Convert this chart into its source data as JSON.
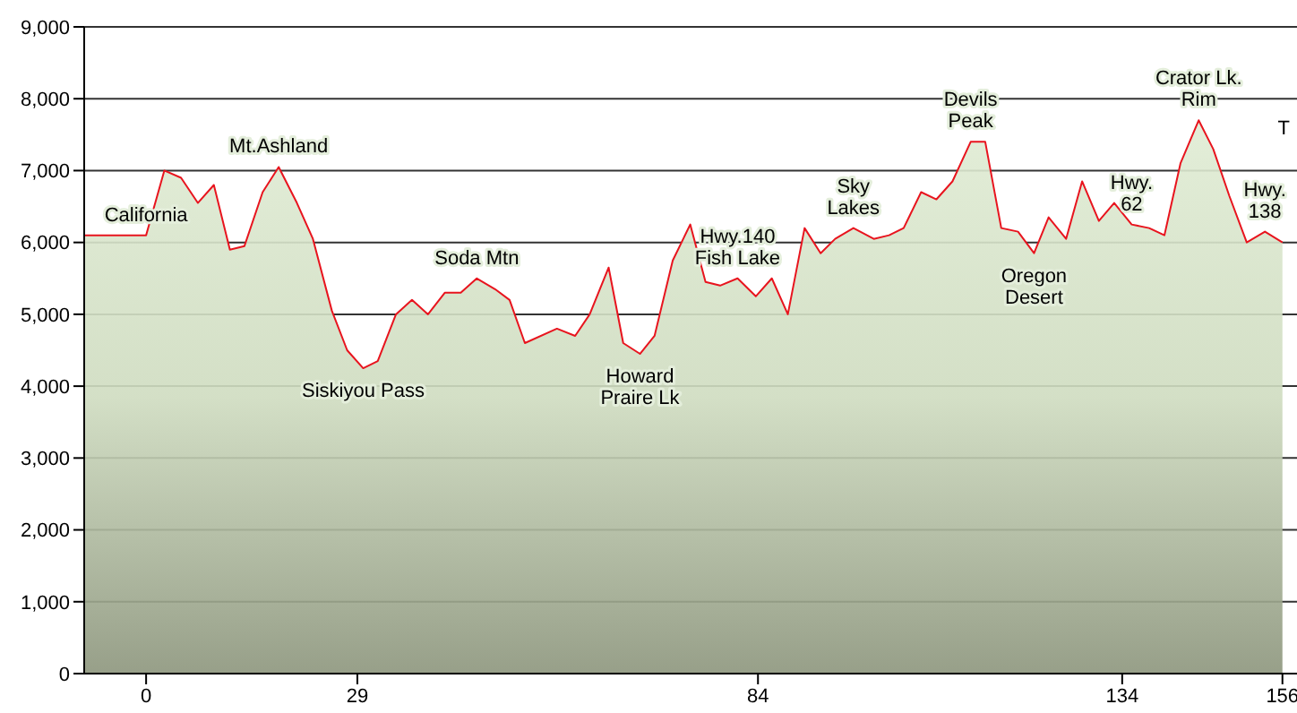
{
  "chart_data": {
    "type": "area",
    "x": [
      -8.5,
      0,
      2.5,
      4.8,
      7.1,
      9.3,
      11.5,
      13.5,
      16,
      18.2,
      20.7,
      22.9,
      25.5,
      27.6,
      29.8,
      31.8,
      34.3,
      36.5,
      38.7,
      41,
      43.2,
      45.4,
      47.9,
      49.9,
      52,
      56.4,
      58.9,
      60.9,
      63.5,
      65.5,
      67.8,
      69.8,
      72.3,
      74.7,
      76.8,
      78.8,
      81.2,
      83.7,
      85.9,
      88.1,
      90.4,
      92.6,
      94.6,
      97.1,
      99.9,
      102,
      104,
      106.4,
      108.5,
      110.7,
      113.2,
      115.2,
      117.4,
      119.7,
      121.9,
      123.9,
      126.3,
      128.5,
      130.8,
      132.9,
      135.3,
      137.7,
      139.8,
      142,
      144.5,
      146.5,
      148.7,
      151.1,
      153.6,
      156
    ],
    "series": [
      {
        "color": "#e8141e",
        "values": [
          6100,
          6100,
          7000,
          6900,
          6550,
          6800,
          5900,
          5950,
          6700,
          7050,
          6550,
          6050,
          5050,
          4500,
          4250,
          4350,
          5000,
          5200,
          5000,
          5300,
          5300,
          5500,
          5350,
          5200,
          4600,
          4800,
          4700,
          5000,
          5650,
          4600,
          4450,
          4700,
          5750,
          6250,
          5450,
          5400,
          5500,
          5250,
          5500,
          5000,
          6200,
          5850,
          6050,
          6200,
          6050,
          6100,
          6200,
          6700,
          6600,
          6850,
          7400,
          7400,
          6200,
          6150,
          5850,
          6350,
          6050,
          6850,
          6300,
          6550,
          6250,
          6200,
          6100,
          7100,
          7700,
          7300,
          6650,
          6000,
          6150,
          6000
        ]
      }
    ],
    "xlim": [
      -8.5,
      158
    ],
    "xticks": [
      0,
      29,
      84,
      134,
      156
    ],
    "ylim": [
      0,
      9000
    ],
    "yticks": [
      0,
      {
        "value": 1000,
        "label": "1,000"
      },
      {
        "value": 2000,
        "label": "2,000"
      },
      {
        "value": 3000,
        "label": "3,000"
      },
      {
        "value": 4000,
        "label": "4,000"
      },
      {
        "value": 5000,
        "label": "5,000"
      },
      {
        "value": 6000,
        "label": "6,000"
      },
      {
        "value": 7000,
        "label": "7,000"
      },
      {
        "value": 8000,
        "label": "8,000"
      },
      {
        "value": 9000,
        "label": "9,000"
      }
    ],
    "grid": "y",
    "legend": false,
    "annotations": [
      {
        "text": "California",
        "x": 0,
        "y": 6100
      },
      {
        "text": "Mt.Ashland",
        "x": 18.2,
        "y": 7050
      },
      {
        "text": "Soda Mtn",
        "x": 45.4,
        "y": 5500
      },
      {
        "text": "Siskiyou Pass",
        "x": 29.8,
        "y": 4250
      },
      {
        "text": "Howard\nPraire Lk",
        "x": 67.8,
        "y": 4450
      },
      {
        "text": "Hwy.140\nFish Lake",
        "x": 81.2,
        "y": 5500
      },
      {
        "text": "Sky\nLakes",
        "x": 97.1,
        "y": 6200
      },
      {
        "text": "Devils\nPeak",
        "x": 113.2,
        "y": 7400
      },
      {
        "text": "Oregon\nDesert",
        "x": 121.9,
        "y": 5850
      },
      {
        "text": "Hwy.\n62",
        "x": 135.3,
        "y": 6250
      },
      {
        "text": "Crator Lk.\nRim",
        "x": 144.5,
        "y": 7700
      },
      {
        "text": "Hwy.\n138",
        "x": 153.6,
        "y": 6150
      },
      "T"
    ]
  }
}
